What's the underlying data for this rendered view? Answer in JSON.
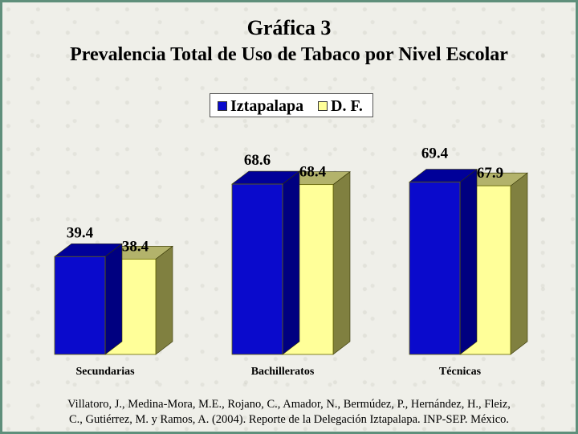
{
  "title": "Gráfica 3",
  "subtitle": "Prevalencia Total de Uso de Tabaco por Nivel Escolar",
  "source_line1": "Villatoro, J., Medina-Mora, M.E., Rojano, C., Amador, N., Bermúdez, P., Hernández, H., Fleiz,",
  "source_line2": "C., Gutiérrez, M. y Ramos, A. (2004). Reporte de la Delegación Iztapalapa. INP-SEP. México.",
  "colors": {
    "iztapalapa_front": "#0a0acc",
    "iztapalapa_side": "#000080",
    "iztapalapa_top": "#000099",
    "df_front": "#ffff99",
    "df_side": "#808040",
    "df_top": "#b3b36b"
  },
  "chart_data": {
    "type": "bar",
    "title": "Gráfica 3",
    "subtitle": "Prevalencia Total de Uso de Tabaco por Nivel Escolar",
    "categories": [
      "Secundarias",
      "Bachilleratos",
      "Técnicas"
    ],
    "series": [
      {
        "name": "Iztapalapa",
        "values": [
          39.4,
          68.6,
          69.4
        ]
      },
      {
        "name": "D. F.",
        "values": [
          38.4,
          68.4,
          67.9
        ]
      }
    ],
    "data_labels": [
      [
        "39.4",
        "38.4"
      ],
      [
        "68.6",
        "68.4"
      ],
      [
        "69.4",
        "67.9"
      ]
    ],
    "legend_position": "top-center",
    "style": "3d-bar",
    "grid": false
  }
}
